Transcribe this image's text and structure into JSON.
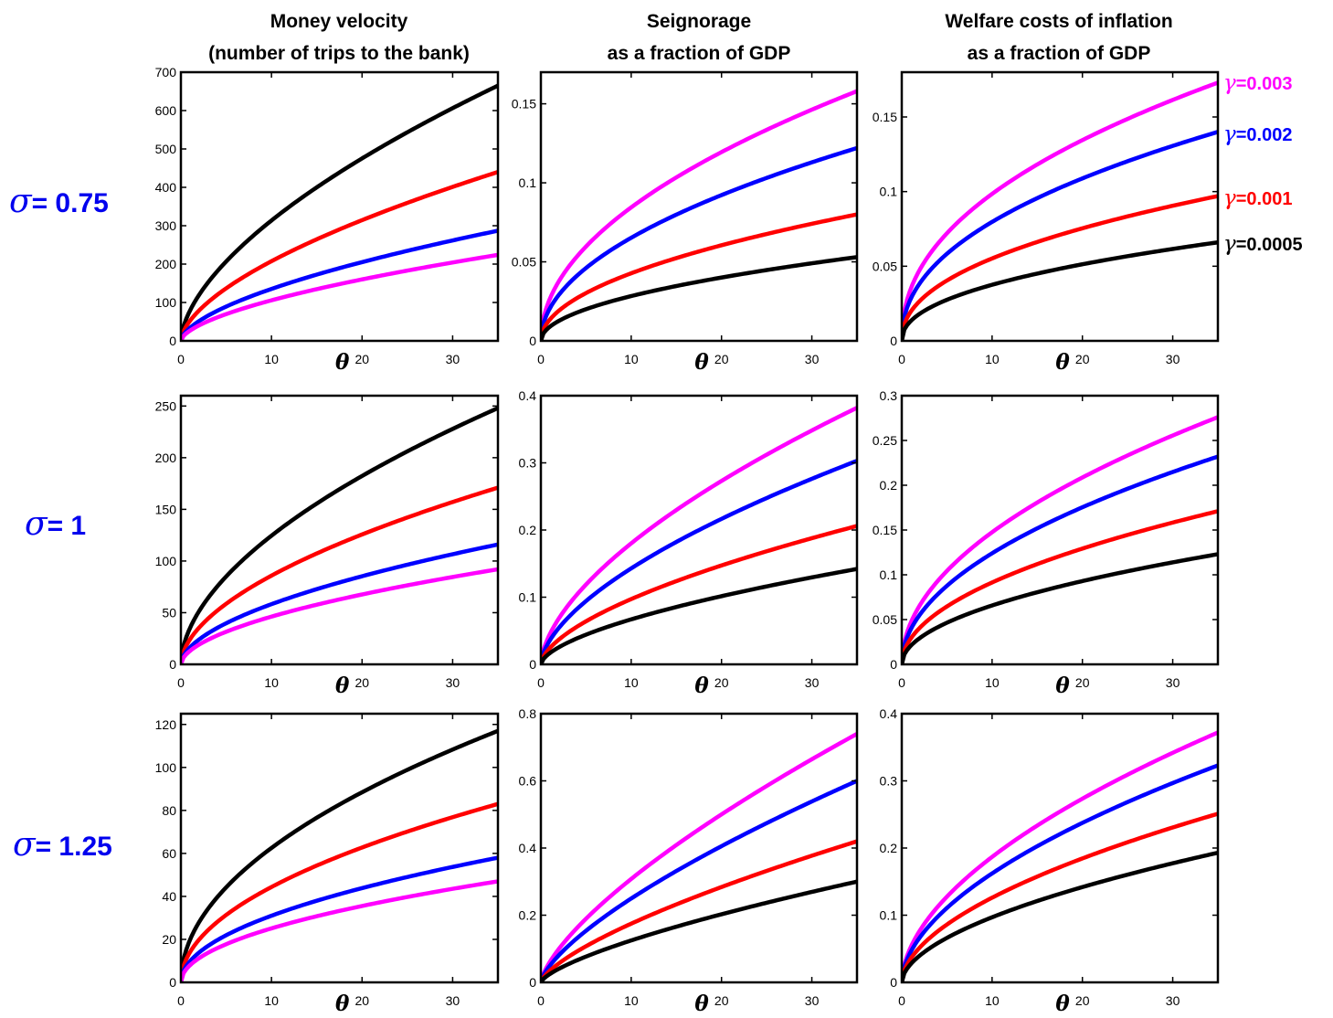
{
  "column_titles": [
    {
      "line1": "Money velocity",
      "line2": "(number of trips to the bank)"
    },
    {
      "line1": "Seignorage",
      "line2": "as a fraction of GDP"
    },
    {
      "line1": "Welfare costs of inflation",
      "line2": "as a fraction of GDP"
    }
  ],
  "row_labels": [
    {
      "symbol": "σ",
      "text": "= 0.75"
    },
    {
      "symbol": "σ",
      "text": "= 1"
    },
    {
      "symbol": "σ",
      "text": "= 1.25"
    }
  ],
  "legend": [
    {
      "symbol": "γ",
      "text": "=0.003",
      "color": "#ff00ff"
    },
    {
      "symbol": "γ",
      "text": "=0.002",
      "color": "#0000ff"
    },
    {
      "symbol": "γ",
      "text": "=0.001",
      "color": "#ff0000"
    },
    {
      "symbol": "γ",
      "text": "=0.0005",
      "color": "#000000"
    }
  ],
  "chart_data": [
    {
      "type": "line",
      "row": 0,
      "col": 0,
      "x_label": "θ",
      "xlim": [
        0,
        35
      ],
      "xticks": [
        "0",
        "10",
        "20",
        "30"
      ],
      "ylim": [
        0,
        700
      ],
      "yticks": [
        "0",
        "100",
        "200",
        "300",
        "400",
        "500",
        "600",
        "700"
      ],
      "series": [
        {
          "name": "γ=0.0005",
          "color": "#000000",
          "x": [
            0,
            35
          ],
          "y": [
            0,
            665
          ],
          "shape": "power",
          "exponent": 0.6
        },
        {
          "name": "γ=0.001",
          "color": "#ff0000",
          "x": [
            0,
            35
          ],
          "y": [
            0,
            440
          ],
          "shape": "power",
          "exponent": 0.6
        },
        {
          "name": "γ=0.002",
          "color": "#0000ff",
          "x": [
            0,
            35
          ],
          "y": [
            0,
            287
          ],
          "shape": "power",
          "exponent": 0.6
        },
        {
          "name": "γ=0.003",
          "color": "#ff00ff",
          "x": [
            0,
            35
          ],
          "y": [
            0,
            224
          ],
          "shape": "power",
          "exponent": 0.6
        }
      ]
    },
    {
      "type": "line",
      "row": 0,
      "col": 1,
      "x_label": "θ",
      "xlim": [
        0,
        35
      ],
      "xticks": [
        "0",
        "10",
        "20",
        "30"
      ],
      "ylim": [
        0,
        0.17
      ],
      "yticks": [
        "0",
        "0.05",
        "0.1",
        "0.15"
      ],
      "series": [
        {
          "name": "γ=0.003",
          "color": "#ff00ff",
          "x": [
            0,
            35
          ],
          "y": [
            0,
            0.158
          ],
          "shape": "power",
          "exponent": 0.5
        },
        {
          "name": "γ=0.002",
          "color": "#0000ff",
          "x": [
            0,
            35
          ],
          "y": [
            0,
            0.122
          ],
          "shape": "power",
          "exponent": 0.5
        },
        {
          "name": "γ=0.001",
          "color": "#ff0000",
          "x": [
            0,
            35
          ],
          "y": [
            0,
            0.08
          ],
          "shape": "power",
          "exponent": 0.5
        },
        {
          "name": "γ=0.0005",
          "color": "#000000",
          "x": [
            0,
            35
          ],
          "y": [
            0,
            0.053
          ],
          "shape": "power",
          "exponent": 0.5
        }
      ]
    },
    {
      "type": "line",
      "row": 0,
      "col": 2,
      "x_label": "θ",
      "xlim": [
        0,
        35
      ],
      "xticks": [
        "0",
        "10",
        "20",
        "30"
      ],
      "ylim": [
        0,
        0.18
      ],
      "yticks": [
        "0",
        "0.05",
        "0.1",
        "0.15"
      ],
      "series": [
        {
          "name": "γ=0.003",
          "color": "#ff00ff",
          "x": [
            0,
            35
          ],
          "y": [
            0,
            0.173
          ],
          "shape": "power",
          "exponent": 0.45
        },
        {
          "name": "γ=0.002",
          "color": "#0000ff",
          "x": [
            0,
            35
          ],
          "y": [
            0,
            0.14
          ],
          "shape": "power",
          "exponent": 0.45
        },
        {
          "name": "γ=0.001",
          "color": "#ff0000",
          "x": [
            0,
            35
          ],
          "y": [
            0,
            0.097
          ],
          "shape": "power",
          "exponent": 0.45
        },
        {
          "name": "γ=0.0005",
          "color": "#000000",
          "x": [
            0,
            35
          ],
          "y": [
            0,
            0.066
          ],
          "shape": "power",
          "exponent": 0.45
        }
      ]
    },
    {
      "type": "line",
      "row": 1,
      "col": 0,
      "x_label": "θ",
      "xlim": [
        0,
        35
      ],
      "xticks": [
        "0",
        "10",
        "20",
        "30"
      ],
      "ylim": [
        0,
        260
      ],
      "yticks": [
        "0",
        "50",
        "100",
        "150",
        "200",
        "250"
      ],
      "series": [
        {
          "name": "γ=0.0005",
          "color": "#000000",
          "x": [
            0,
            35
          ],
          "y": [
            0,
            248
          ],
          "shape": "power",
          "exponent": 0.55
        },
        {
          "name": "γ=0.001",
          "color": "#ff0000",
          "x": [
            0,
            35
          ],
          "y": [
            0,
            171
          ],
          "shape": "power",
          "exponent": 0.55
        },
        {
          "name": "γ=0.002",
          "color": "#0000ff",
          "x": [
            0,
            35
          ],
          "y": [
            0,
            116
          ],
          "shape": "power",
          "exponent": 0.55
        },
        {
          "name": "γ=0.003",
          "color": "#ff00ff",
          "x": [
            0,
            35
          ],
          "y": [
            0,
            92
          ],
          "shape": "power",
          "exponent": 0.55
        }
      ]
    },
    {
      "type": "line",
      "row": 1,
      "col": 1,
      "x_label": "θ",
      "xlim": [
        0,
        35
      ],
      "xticks": [
        "0",
        "10",
        "20",
        "30"
      ],
      "ylim": [
        0,
        0.4
      ],
      "yticks": [
        "0",
        "0.1",
        "0.2",
        "0.3",
        "0.4"
      ],
      "series": [
        {
          "name": "γ=0.003",
          "color": "#ff00ff",
          "x": [
            0,
            35
          ],
          "y": [
            0,
            0.382
          ],
          "shape": "power",
          "exponent": 0.6
        },
        {
          "name": "γ=0.002",
          "color": "#0000ff",
          "x": [
            0,
            35
          ],
          "y": [
            0,
            0.303
          ],
          "shape": "power",
          "exponent": 0.6
        },
        {
          "name": "γ=0.001",
          "color": "#ff0000",
          "x": [
            0,
            35
          ],
          "y": [
            0,
            0.206
          ],
          "shape": "power",
          "exponent": 0.6
        },
        {
          "name": "γ=0.0005",
          "color": "#000000",
          "x": [
            0,
            35
          ],
          "y": [
            0,
            0.142
          ],
          "shape": "power",
          "exponent": 0.6
        }
      ]
    },
    {
      "type": "line",
      "row": 1,
      "col": 2,
      "x_label": "θ",
      "xlim": [
        0,
        35
      ],
      "xticks": [
        "0",
        "10",
        "20",
        "30"
      ],
      "ylim": [
        0,
        0.3
      ],
      "yticks": [
        "0",
        "0.05",
        "0.1",
        "0.15",
        "0.2",
        "0.25",
        "0.3"
      ],
      "series": [
        {
          "name": "γ=0.003",
          "color": "#ff00ff",
          "x": [
            0,
            35
          ],
          "y": [
            0,
            0.276
          ],
          "shape": "power",
          "exponent": 0.5
        },
        {
          "name": "γ=0.002",
          "color": "#0000ff",
          "x": [
            0,
            35
          ],
          "y": [
            0,
            0.232
          ],
          "shape": "power",
          "exponent": 0.5
        },
        {
          "name": "γ=0.001",
          "color": "#ff0000",
          "x": [
            0,
            35
          ],
          "y": [
            0,
            0.171
          ],
          "shape": "power",
          "exponent": 0.5
        },
        {
          "name": "γ=0.0005",
          "color": "#000000",
          "x": [
            0,
            35
          ],
          "y": [
            0,
            0.123
          ],
          "shape": "power",
          "exponent": 0.5
        }
      ]
    },
    {
      "type": "line",
      "row": 2,
      "col": 0,
      "x_label": "θ",
      "xlim": [
        0,
        35
      ],
      "xticks": [
        "0",
        "10",
        "20",
        "30"
      ],
      "ylim": [
        0,
        125
      ],
      "yticks": [
        "0",
        "20",
        "40",
        "60",
        "80",
        "100",
        "120"
      ],
      "series": [
        {
          "name": "γ=0.0005",
          "color": "#000000",
          "x": [
            0,
            35
          ],
          "y": [
            0,
            117
          ],
          "shape": "power",
          "exponent": 0.5
        },
        {
          "name": "γ=0.001",
          "color": "#ff0000",
          "x": [
            0,
            35
          ],
          "y": [
            0,
            83
          ],
          "shape": "power",
          "exponent": 0.5
        },
        {
          "name": "γ=0.002",
          "color": "#0000ff",
          "x": [
            0,
            35
          ],
          "y": [
            0,
            58
          ],
          "shape": "power",
          "exponent": 0.5
        },
        {
          "name": "γ=0.003",
          "color": "#ff00ff",
          "x": [
            0,
            35
          ],
          "y": [
            0,
            47
          ],
          "shape": "power",
          "exponent": 0.5
        }
      ]
    },
    {
      "type": "line",
      "row": 2,
      "col": 1,
      "x_label": "θ",
      "xlim": [
        0,
        35
      ],
      "xticks": [
        "0",
        "10",
        "20",
        "30"
      ],
      "ylim": [
        0,
        0.8
      ],
      "yticks": [
        "0",
        "0.2",
        "0.4",
        "0.6",
        "0.8"
      ],
      "series": [
        {
          "name": "γ=0.003",
          "color": "#ff00ff",
          "x": [
            0,
            35
          ],
          "y": [
            0,
            0.74
          ],
          "shape": "power",
          "exponent": 0.7
        },
        {
          "name": "γ=0.002",
          "color": "#0000ff",
          "x": [
            0,
            35
          ],
          "y": [
            0,
            0.6
          ],
          "shape": "power",
          "exponent": 0.7
        },
        {
          "name": "γ=0.001",
          "color": "#ff0000",
          "x": [
            0,
            35
          ],
          "y": [
            0,
            0.42
          ],
          "shape": "power",
          "exponent": 0.7
        },
        {
          "name": "γ=0.0005",
          "color": "#000000",
          "x": [
            0,
            35
          ],
          "y": [
            0,
            0.3
          ],
          "shape": "power",
          "exponent": 0.7
        }
      ]
    },
    {
      "type": "line",
      "row": 2,
      "col": 2,
      "x_label": "θ",
      "xlim": [
        0,
        35
      ],
      "xticks": [
        "0",
        "10",
        "20",
        "30"
      ],
      "ylim": [
        0,
        0.4
      ],
      "yticks": [
        "0",
        "0.1",
        "0.2",
        "0.3",
        "0.4"
      ],
      "series": [
        {
          "name": "γ=0.003",
          "color": "#ff00ff",
          "x": [
            0,
            35
          ],
          "y": [
            0,
            0.372
          ],
          "shape": "power",
          "exponent": 0.55
        },
        {
          "name": "γ=0.002",
          "color": "#0000ff",
          "x": [
            0,
            35
          ],
          "y": [
            0,
            0.323
          ],
          "shape": "power",
          "exponent": 0.55
        },
        {
          "name": "γ=0.001",
          "color": "#ff0000",
          "x": [
            0,
            35
          ],
          "y": [
            0,
            0.251
          ],
          "shape": "power",
          "exponent": 0.55
        },
        {
          "name": "γ=0.0005",
          "color": "#000000",
          "x": [
            0,
            35
          ],
          "y": [
            0,
            0.193
          ],
          "shape": "power",
          "exponent": 0.55
        }
      ]
    }
  ]
}
